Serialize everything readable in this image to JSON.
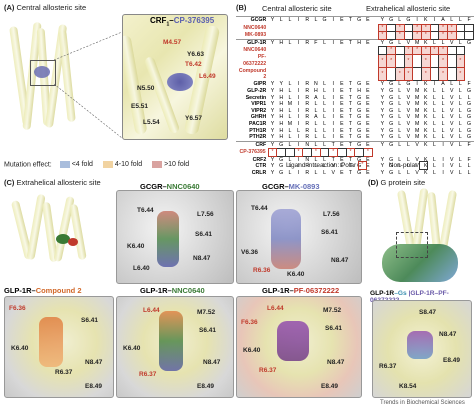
{
  "panel_a": {
    "letter": "(A)",
    "title": "Central allosteric site",
    "complex_receptor": "CRF",
    "complex_sub": "1",
    "complex_dash": "–",
    "complex_ligand": "CP-376395",
    "residues": [
      "N5.50",
      "Y6.63",
      "M4.57",
      "E5.51",
      "L5.54",
      "T6.42",
      "L6.49",
      "Y6.57"
    ]
  },
  "panel_b": {
    "letter": "(B)",
    "site_central": "Central allosteric site",
    "site_extrahelical": "Extrahelical allosteric site",
    "rows": [
      {
        "name": "GCGR",
        "central": "YLLIRLGIETGE",
        "extra": "YGLGIKIALLF"
      },
      {
        "name": "NNC0640",
        "central": "",
        "extra": "*.*.**.**..",
        "colored": true
      },
      {
        "name": "MK-0893",
        "central": "",
        "extra": "*.*.**.**..",
        "colored": true
      },
      {
        "name": "GLP-1R",
        "central": "YHLIRFLIETHE",
        "extra": "YGLVMKLLVLG"
      },
      {
        "name": "NNC0640",
        "central": "",
        "extra": ".*.*****..",
        "colored": true
      },
      {
        "name": "PF-06372222",
        "central": "",
        "extra": "**.*.*.*.*",
        "colored": true
      },
      {
        "name": "Compound 2",
        "central": "",
        "extra": "*.**.*.*.*",
        "colored": true
      },
      {
        "name": "GIPR",
        "central": "YYLIRNLIETGE",
        "extra": "YGLGIKIALLF"
      },
      {
        "name": "GLP-2R",
        "central": "YHLIRHLIETHE",
        "extra": "YGLVMKLLVLG"
      },
      {
        "name": "Secretin",
        "central": "YHLIRALIETGE",
        "extra": "YGLVMKLLVLL"
      },
      {
        "name": "VIPR1",
        "central": "YHMIRLLIETGE",
        "extra": "YGLVMKLLVLG"
      },
      {
        "name": "VIPR2",
        "central": "YHLIRLLIETGE",
        "extra": "YGLVMKLLVLG"
      },
      {
        "name": "GHRH",
        "central": "YHLIRALIETGE",
        "extra": "YGLVMKLLVLG"
      },
      {
        "name": "PAC1R",
        "central": "YHMIRLLIETGE",
        "extra": "YGLVMKLLVLG"
      },
      {
        "name": "PTH1R",
        "central": "YHLLRLLIETGE",
        "extra": "YGLVMKLLVLG"
      },
      {
        "name": "PTH2R",
        "central": "YHLIRLLIETGE",
        "extra": "YGLVMKLLVLG"
      },
      {
        "name": "CRF",
        "central": "YGLINLLTETGE",
        "extra": "YGLLVKLIVLF"
      },
      {
        "name": "CP-376395",
        "central": "*..*.*.*.*.*",
        "extra": "",
        "colored": true
      },
      {
        "name": "CRF2",
        "central": "YGLINLLTETGE",
        "extra": "YGLLVKLIVLF"
      },
      {
        "name": "CTR",
        "central": "YGLIRLLVETGE",
        "extra": "YGLLVKLIVLL"
      },
      {
        "name": "CRLR",
        "central": "YGLIRLLVETGE",
        "extra": "YGLLVKLIVLL"
      }
    ],
    "legend_interaction": "Ligand intreaction:",
    "legend_polar": "Polar",
    "legend_nonpolar": "Non-polar"
  },
  "mutation_legend": {
    "title": "Mutation effect:",
    "items": [
      {
        "label": "<4 fold",
        "color": "#a9bddc"
      },
      {
        "label": "4-10 fold",
        "color": "#f1d3a1"
      },
      {
        "label": ">10 fold",
        "color": "#d9a3a0"
      }
    ]
  },
  "panel_c": {
    "letter": "(C)",
    "title": "Extrahelical allosteric site",
    "views": [
      {
        "receptor": "GCGR",
        "dash": "–",
        "ligand": "NNC0640",
        "ligand_color": "#3a7a35",
        "residues": [
          "T6.44",
          "L7.56",
          "S6.41",
          "K6.40",
          "N8.47",
          "L6.40"
        ]
      },
      {
        "receptor": "GCGR",
        "dash": "–",
        "ligand": "MK-0893",
        "ligand_color": "#6670b8",
        "residues": [
          "T6.44",
          "L7.56",
          "S6.41",
          "V6.36",
          "R6.36",
          "K6.40",
          "N8.47"
        ]
      },
      {
        "receptor": "GLP-1R",
        "dash": "–",
        "ligand": "Compound 2",
        "ligand_color": "#d2692a",
        "residues": [
          "F6.36",
          "S6.41",
          "K6.40",
          "R6.37",
          "N8.47",
          "E8.49"
        ]
      },
      {
        "receptor": "GLP-1R",
        "dash": "–",
        "ligand": "NNC0640",
        "ligand_color": "#3a7a35",
        "residues": [
          "L6.44",
          "M7.52",
          "S6.41",
          "K6.40",
          "R6.37",
          "N8.47",
          "E8.49"
        ]
      },
      {
        "receptor": "GLP-1R",
        "dash": "–",
        "ligand": "PF-06372222",
        "ligand_color": "#c0392b",
        "residues": [
          "L6.44",
          "M7.52",
          "F6.36",
          "S6.41",
          "K6.40",
          "R6.37",
          "N8.47",
          "E8.49"
        ]
      }
    ]
  },
  "panel_d": {
    "letter": "(D)",
    "title": "G protein site",
    "caption_a": "GLP-1R",
    "caption_a2": "–Gs",
    "caption_sep": "GLP-1R",
    "caption_b": "–PF-06372222",
    "residues": [
      "S8.47",
      "N8.47",
      "E8.49",
      "R6.37",
      "K8.54"
    ]
  },
  "footer": "Trends in Biochemical Sciences"
}
